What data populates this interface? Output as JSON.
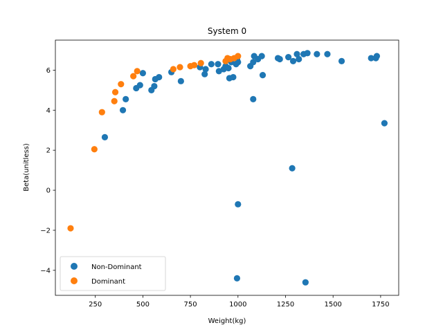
{
  "chart_data": {
    "type": "scatter",
    "title": "System 0",
    "xlabel": "Weight(kg)",
    "ylabel": "Beta(unitless)",
    "xlim": [
      40,
      1845
    ],
    "ylim": [
      -5.25,
      7.5
    ],
    "xticks": [
      250,
      500,
      750,
      1000,
      1250,
      1500,
      1750
    ],
    "xtick_labels": [
      "250",
      "500",
      "750",
      "1000",
      "1250",
      "1500",
      "1750"
    ],
    "yticks": [
      -4,
      -2,
      0,
      2,
      4,
      6
    ],
    "ytick_labels": [
      "−4",
      "−2",
      "0",
      "2",
      "4",
      "6"
    ],
    "grid": false,
    "legend_position": "lower-left",
    "series": [
      {
        "name": "Non-Dominant",
        "color": "#1f77b4",
        "points": [
          [
            300,
            2.65
          ],
          [
            395,
            4.0
          ],
          [
            410,
            4.55
          ],
          [
            465,
            5.1
          ],
          [
            485,
            5.25
          ],
          [
            500,
            5.85
          ],
          [
            545,
            5.0
          ],
          [
            560,
            5.2
          ],
          [
            565,
            5.55
          ],
          [
            585,
            5.65
          ],
          [
            650,
            5.9
          ],
          [
            700,
            5.45
          ],
          [
            800,
            6.15
          ],
          [
            825,
            5.8
          ],
          [
            830,
            6.05
          ],
          [
            860,
            6.3
          ],
          [
            895,
            6.3
          ],
          [
            900,
            5.95
          ],
          [
            925,
            6.05
          ],
          [
            935,
            6.2
          ],
          [
            950,
            6.1
          ],
          [
            955,
            5.6
          ],
          [
            965,
            6.4
          ],
          [
            975,
            5.65
          ],
          [
            990,
            6.3
          ],
          [
            995,
            6.55
          ],
          [
            1000,
            6.4
          ],
          [
            1065,
            6.2
          ],
          [
            1080,
            6.4
          ],
          [
            1085,
            6.7
          ],
          [
            1080,
            4.55
          ],
          [
            1105,
            6.55
          ],
          [
            1125,
            6.7
          ],
          [
            1130,
            5.75
          ],
          [
            1210,
            6.6
          ],
          [
            1220,
            6.55
          ],
          [
            1265,
            6.65
          ],
          [
            1290,
            6.45
          ],
          [
            1310,
            6.8
          ],
          [
            1320,
            6.55
          ],
          [
            1345,
            6.8
          ],
          [
            1365,
            6.85
          ],
          [
            1415,
            6.8
          ],
          [
            1470,
            6.8
          ],
          [
            1545,
            6.45
          ],
          [
            1700,
            6.6
          ],
          [
            1725,
            6.6
          ],
          [
            1730,
            6.7
          ],
          [
            1770,
            3.35
          ],
          [
            1285,
            1.1
          ],
          [
            1000,
            -0.7
          ],
          [
            995,
            -4.4
          ],
          [
            1355,
            -4.6
          ]
        ]
      },
      {
        "name": "Dominant",
        "color": "#ff7f0e",
        "points": [
          [
            120,
            -1.9
          ],
          [
            245,
            2.05
          ],
          [
            285,
            3.9
          ],
          [
            350,
            4.45
          ],
          [
            355,
            4.9
          ],
          [
            385,
            5.3
          ],
          [
            450,
            5.7
          ],
          [
            470,
            5.95
          ],
          [
            660,
            6.05
          ],
          [
            695,
            6.15
          ],
          [
            750,
            6.2
          ],
          [
            770,
            6.25
          ],
          [
            805,
            6.35
          ],
          [
            935,
            6.45
          ],
          [
            945,
            6.6
          ],
          [
            960,
            6.55
          ],
          [
            980,
            6.6
          ],
          [
            1000,
            6.7
          ]
        ]
      }
    ]
  }
}
